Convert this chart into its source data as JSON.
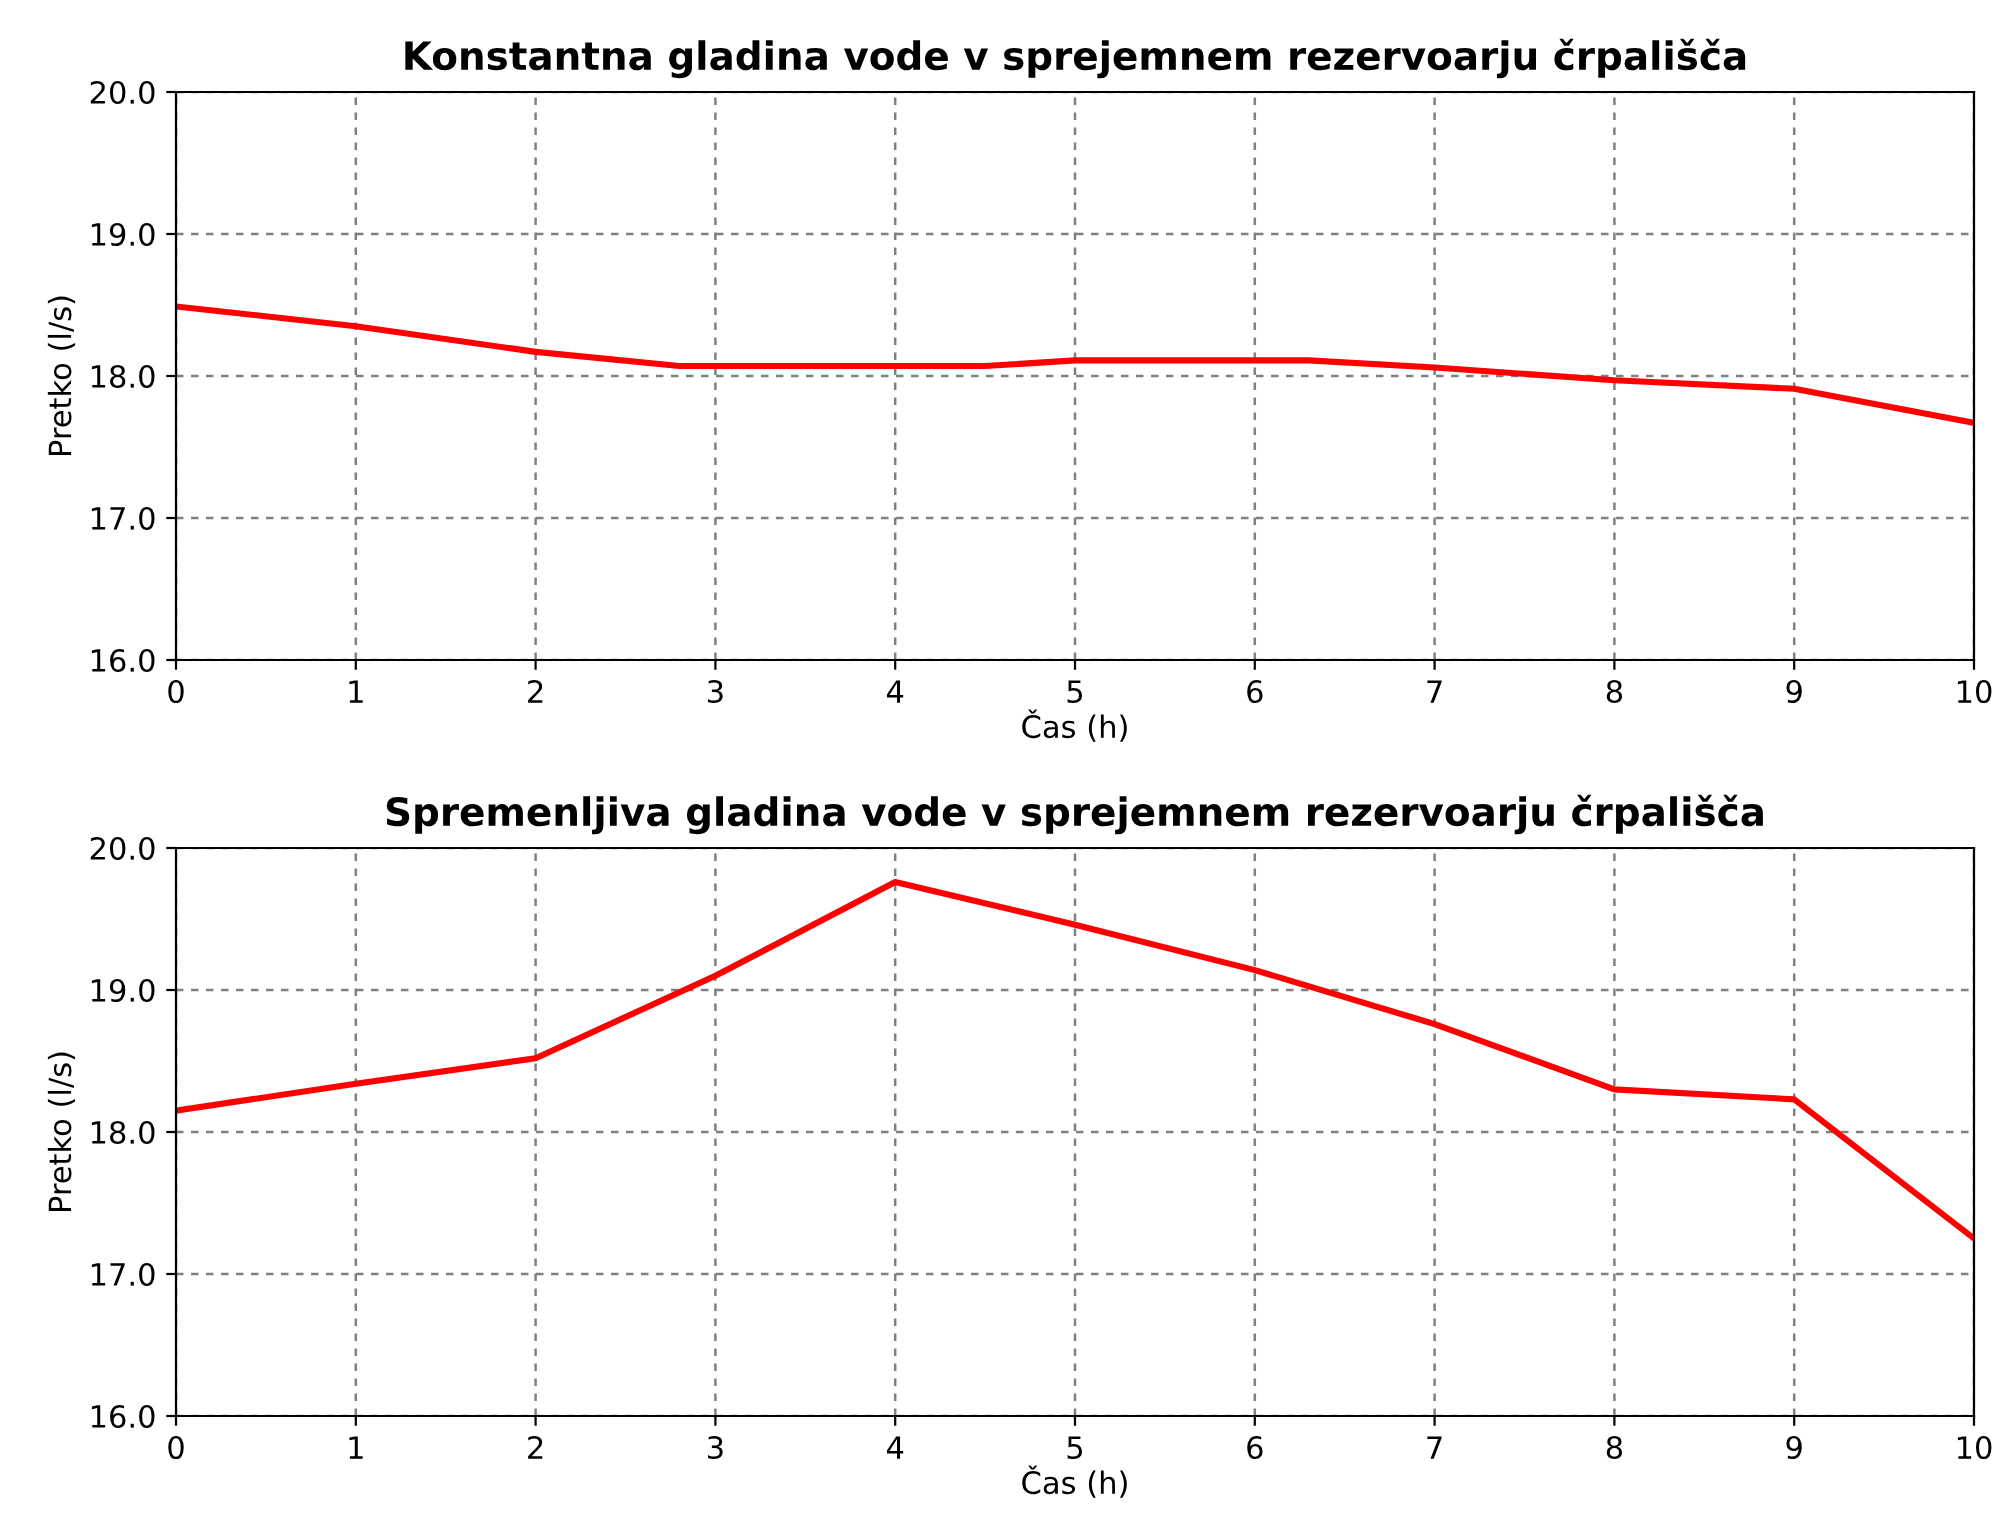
{
  "chart_data": [
    {
      "type": "line",
      "title": "Konstantna gladina vode v sprejemnem rezervoarju črpališča",
      "xlabel": "Čas (h)",
      "ylabel": "Pretko (l/s)",
      "series": [
        {
          "color": "#ff0000",
          "x": [
            0,
            1,
            2,
            2.8,
            4.5,
            5,
            6.3,
            7,
            8,
            9,
            10
          ],
          "values": [
            18.49,
            18.35,
            18.17,
            18.07,
            18.07,
            18.11,
            18.11,
            18.06,
            17.97,
            17.91,
            17.67
          ]
        }
      ],
      "xlim": [
        0,
        10
      ],
      "xticks": [
        0,
        1,
        2,
        3,
        4,
        5,
        6,
        7,
        8,
        9,
        10
      ],
      "ylim": [
        16,
        20
      ],
      "yticks": [
        {
          "value": 16,
          "label": "16.0"
        },
        {
          "value": 17,
          "label": "17.0"
        },
        {
          "value": 18,
          "label": "18.0"
        },
        {
          "value": 19,
          "label": "19.0"
        },
        {
          "value": 20,
          "label": "20.0"
        }
      ],
      "grid": true,
      "line_style": "solid"
    },
    {
      "type": "line",
      "title": "Spremenljiva gladina vode v sprejemnem rezervoarju črpališča",
      "xlabel": "Čas (h)",
      "ylabel": "Pretko (l/s)",
      "series": [
        {
          "color": "#ff0000",
          "x": [
            0,
            1,
            2,
            3,
            4,
            5,
            6,
            7,
            8,
            9,
            10
          ],
          "values": [
            18.15,
            18.34,
            18.52,
            19.1,
            19.76,
            19.46,
            19.14,
            18.76,
            18.3,
            18.23,
            17.25
          ]
        }
      ],
      "xlim": [
        0,
        10
      ],
      "xticks": [
        0,
        1,
        2,
        3,
        4,
        5,
        6,
        7,
        8,
        9,
        10
      ],
      "ylim": [
        16,
        20
      ],
      "yticks": [
        {
          "value": 16,
          "label": "16.0"
        },
        {
          "value": 17,
          "label": "17.0"
        },
        {
          "value": 18,
          "label": "18.0"
        },
        {
          "value": 19,
          "label": "19.0"
        },
        {
          "value": 20,
          "label": "20.0"
        }
      ],
      "grid": true,
      "line_style": "solid"
    }
  ]
}
